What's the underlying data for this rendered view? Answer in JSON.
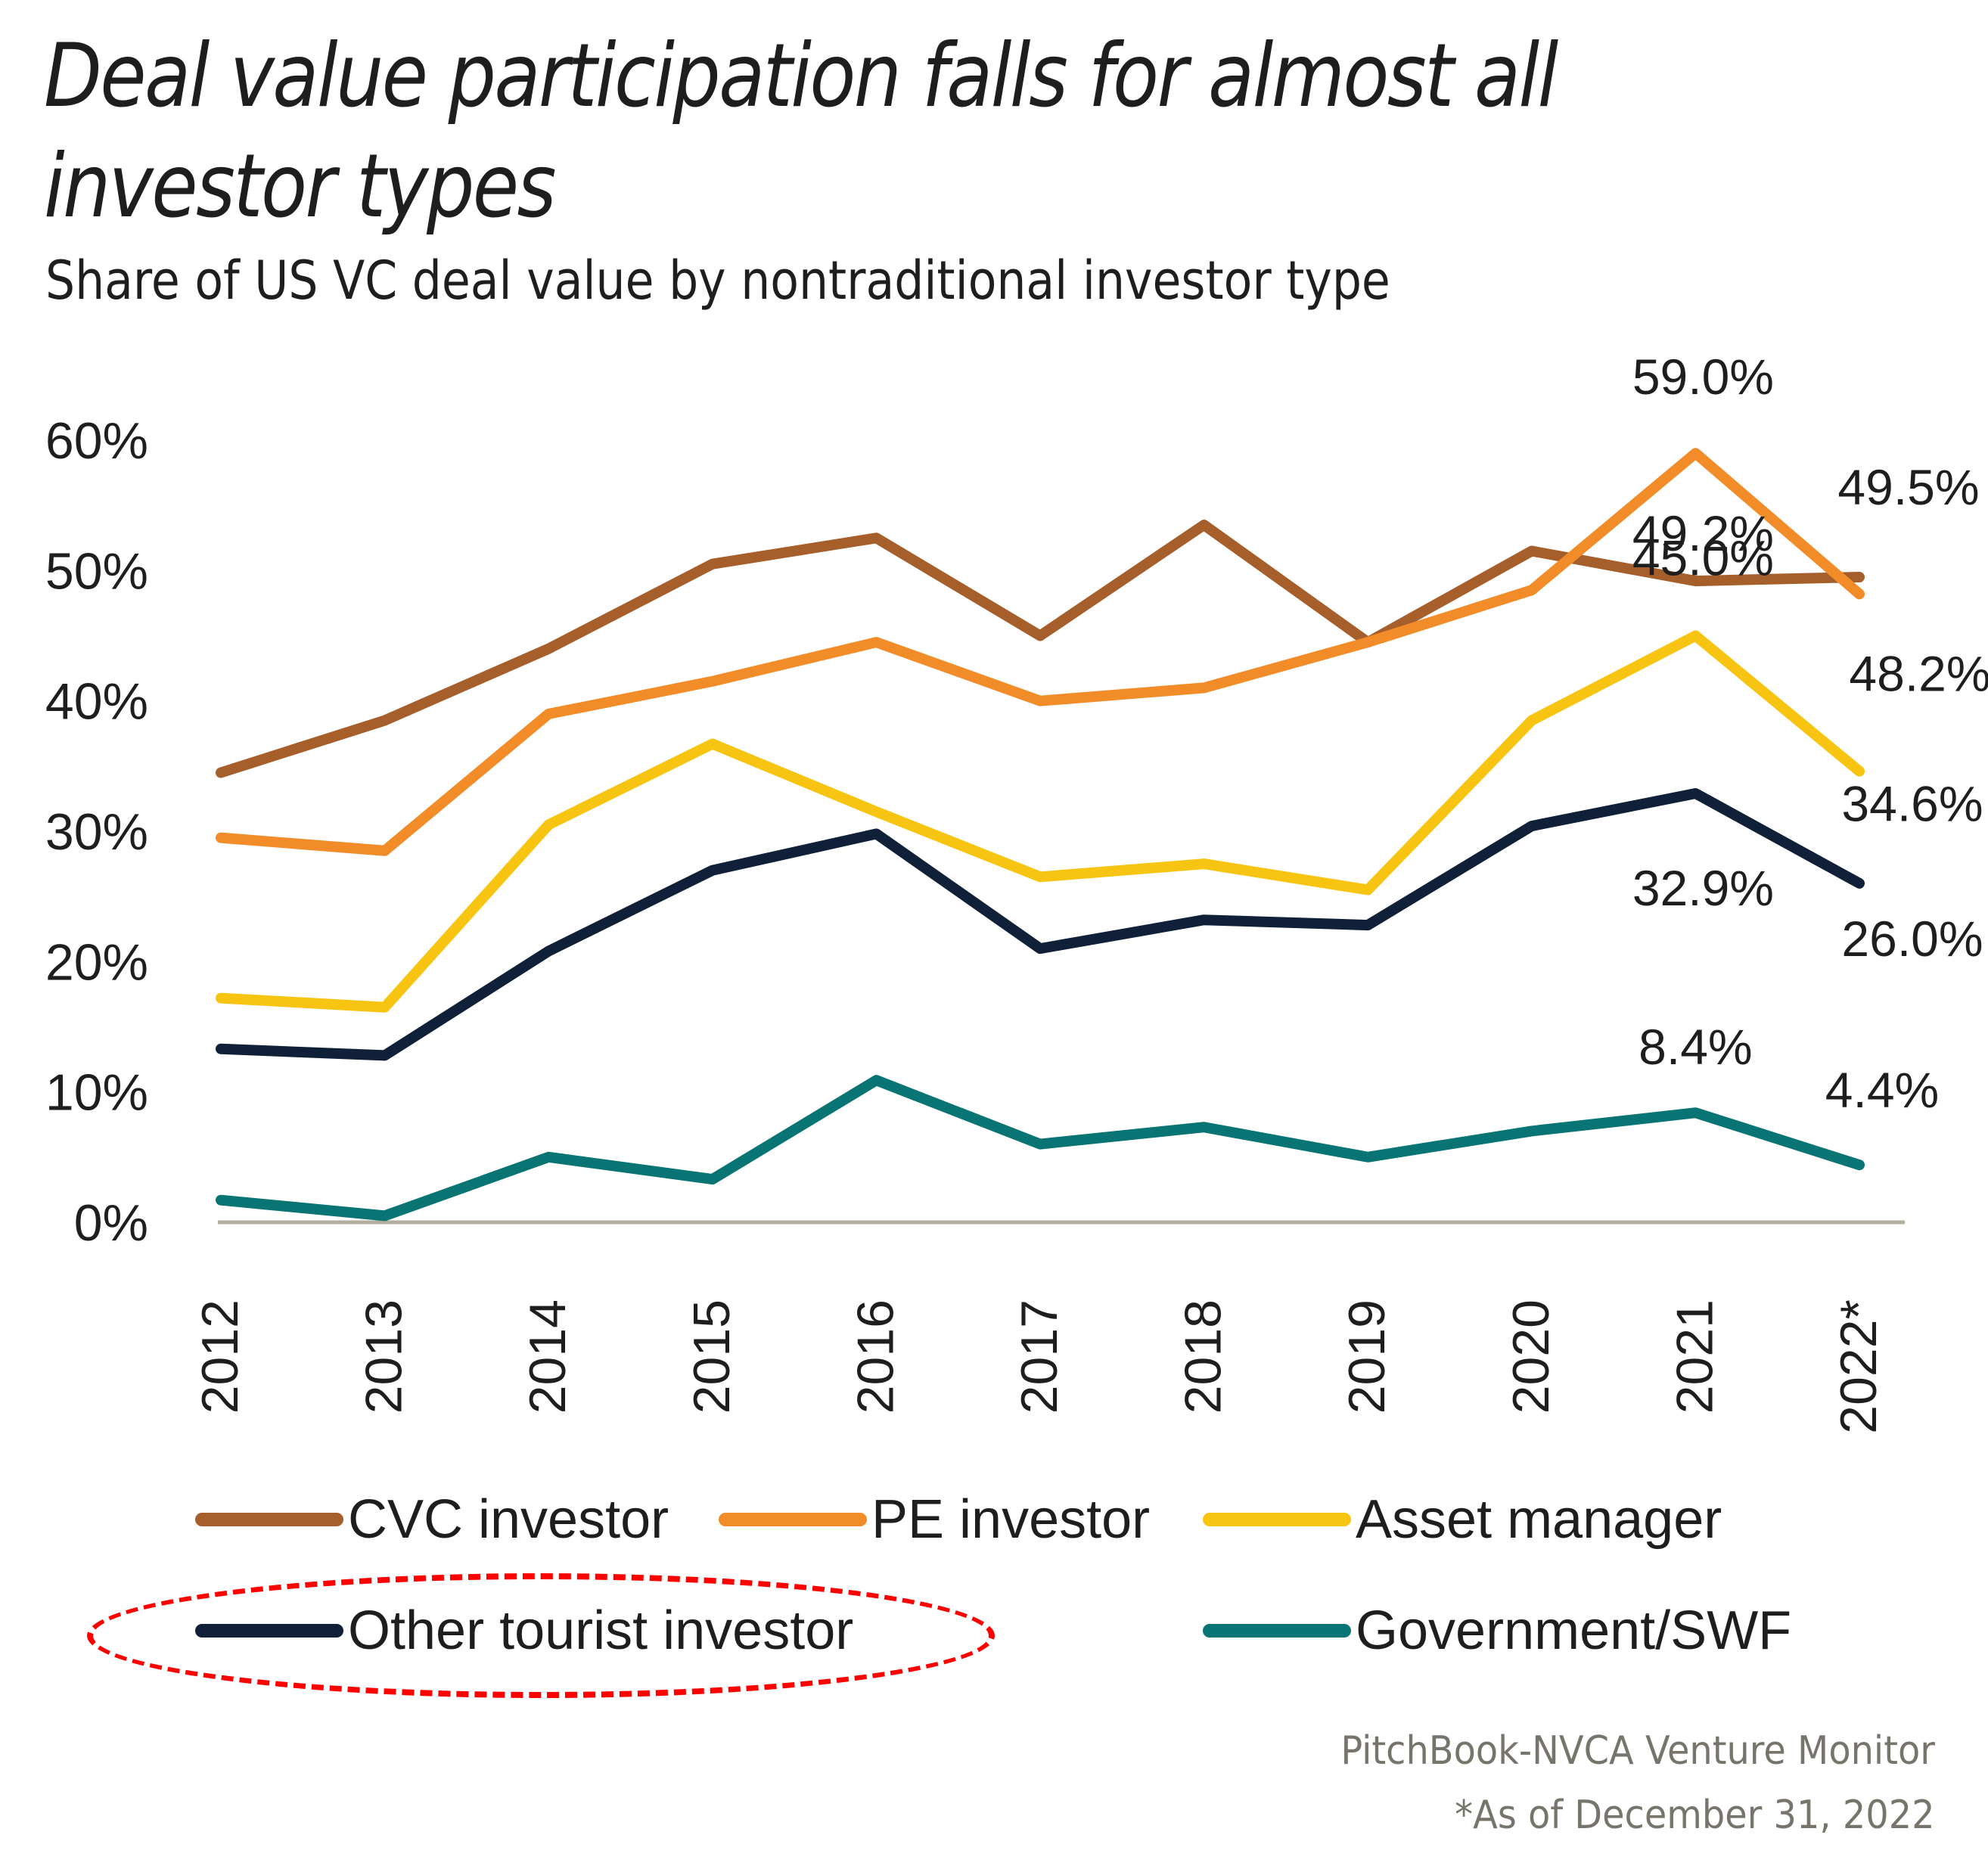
{
  "header": {
    "title": "Deal value participation falls for almost all investor types",
    "subtitle": "Share of US VC deal value by nontraditional investor type"
  },
  "chart_data": {
    "type": "line",
    "title": "Deal value participation falls for almost all investor types",
    "subtitle": "Share of US VC deal value by nontraditional investor type",
    "xlabel": "",
    "ylabel": "",
    "categories": [
      "2012",
      "2013",
      "2014",
      "2015",
      "2016",
      "2017",
      "2018",
      "2019",
      "2020",
      "2021",
      "2022*"
    ],
    "y_ticks": [
      "0%",
      "10%",
      "20%",
      "30%",
      "40%",
      "50%",
      "60%"
    ],
    "ylim": [
      0,
      60
    ],
    "grid": false,
    "legend_position": "bottom",
    "series": [
      {
        "name": "CVC investor",
        "color": "#a65e2a",
        "values": [
          34.5,
          38.5,
          44.0,
          50.5,
          52.5,
          45.0,
          53.5,
          44.5,
          51.5,
          49.2,
          49.5
        ]
      },
      {
        "name": "PE investor",
        "color": "#f28c28",
        "values": [
          29.5,
          28.5,
          39.0,
          41.5,
          44.5,
          40.0,
          41.0,
          44.5,
          48.5,
          59.0,
          48.2
        ]
      },
      {
        "name": "Asset manager",
        "color": "#f7c411",
        "values": [
          17.2,
          16.5,
          30.5,
          36.7,
          31.5,
          26.5,
          27.5,
          25.5,
          38.5,
          45.0,
          34.6
        ]
      },
      {
        "name": "Other tourist investor",
        "color": "#0f2038",
        "values": [
          13.3,
          12.8,
          20.8,
          27.0,
          29.8,
          21.0,
          23.2,
          22.8,
          30.4,
          32.9,
          26.0
        ]
      },
      {
        "name": "Government/SWF",
        "color": "#087474",
        "values": [
          1.7,
          0.5,
          5.0,
          3.3,
          10.9,
          6.0,
          7.3,
          5.0,
          7.0,
          8.4,
          4.4
        ]
      }
    ],
    "annotations": [
      {
        "text": "59.0%",
        "series": "PE investor",
        "category": "2021"
      },
      {
        "text": "49.2%",
        "series": "CVC investor",
        "category": "2021"
      },
      {
        "text": "45.0%",
        "series": "Asset manager",
        "category": "2021"
      },
      {
        "text": "32.9%",
        "series": "Other tourist investor",
        "category": "2021"
      },
      {
        "text": "8.4%",
        "series": "Government/SWF",
        "category": "2021"
      },
      {
        "text": "49.5%",
        "series": "CVC investor",
        "category": "2022*"
      },
      {
        "text": "48.2%",
        "series": "PE investor",
        "category": "2022*"
      },
      {
        "text": "34.6%",
        "series": "Asset manager",
        "category": "2022*"
      },
      {
        "text": "26.0%",
        "series": "Other tourist investor",
        "category": "2022*"
      },
      {
        "text": "4.4%",
        "series": "Government/SWF",
        "category": "2022*"
      }
    ],
    "axis_color": "#b4ae9f"
  },
  "legend": [
    {
      "label": "CVC investor",
      "color": "#a65e2a"
    },
    {
      "label": "PE investor",
      "color": "#f28c28"
    },
    {
      "label": "Asset manager",
      "color": "#f7c411"
    },
    {
      "label": "Other tourist investor",
      "color": "#0f2038",
      "highlighted": true
    },
    {
      "label": "Government/SWF",
      "color": "#087474"
    }
  ],
  "footer": {
    "source": "PitchBook-NVCA Venture Monitor",
    "note": "*As of December 31, 2022"
  },
  "highlight_color": "#ff0000"
}
